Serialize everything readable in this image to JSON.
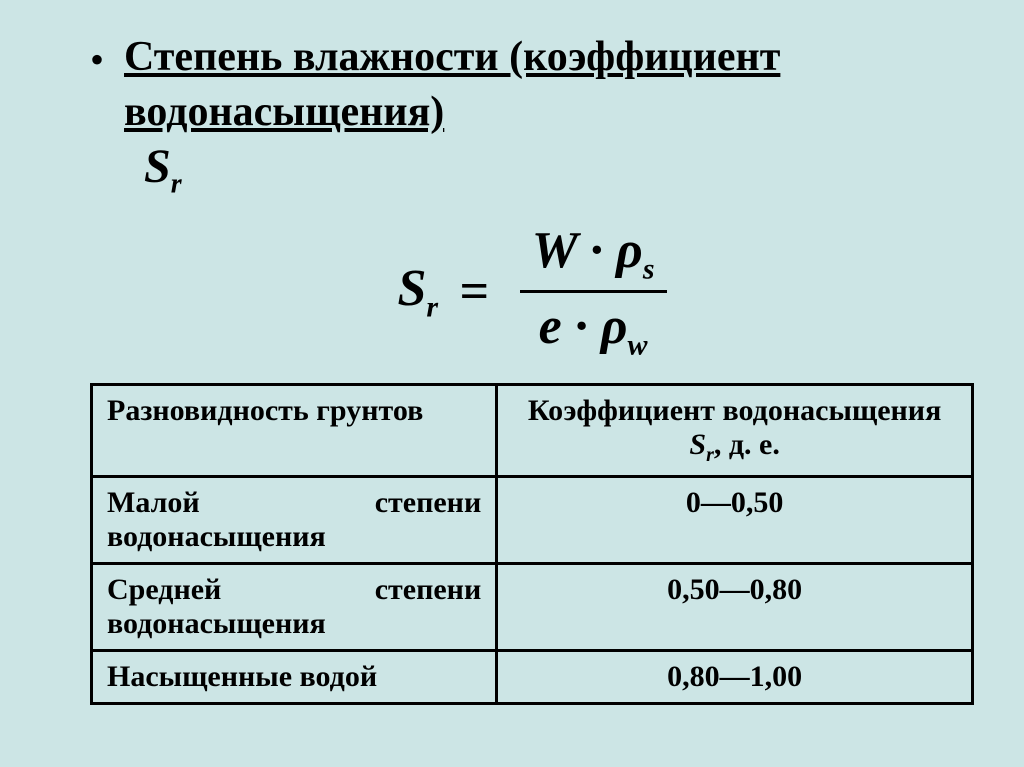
{
  "background_color": "#cce5e5",
  "text_color": "#000000",
  "title": {
    "bullet": "•",
    "text": "Степень влажности (коэффициент водонасыщения)",
    "symbol_html": "S<sub>r</sub>"
  },
  "formula": {
    "lhs_html": "S<sub>r</sub>",
    "eq": "=",
    "numerator_html": "W · ρ<sub>s</sub>",
    "denominator_html": "e · ρ<sub>w</sub>"
  },
  "table": {
    "headers": [
      "Разновидность грунтов",
      "Коэффициент водонасыщения <span class='ital'>S</span><sub class='sr-sub'>r</sub>, д. е."
    ],
    "rows": [
      {
        "label": "Малой степени водонасыщения",
        "value": "0—0,50"
      },
      {
        "label": "Средней степени водонасыщения",
        "value": "0,50—0,80"
      },
      {
        "label": "Насыщенные водой",
        "value": "0,80—1,00"
      }
    ]
  }
}
